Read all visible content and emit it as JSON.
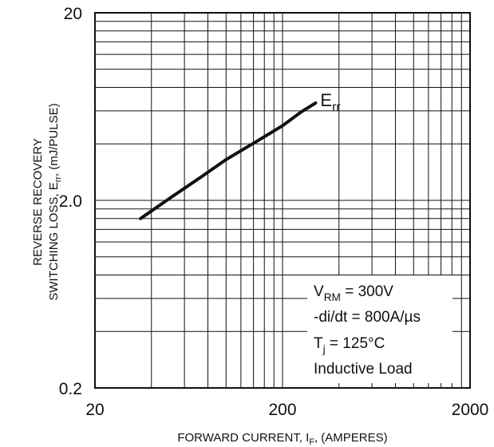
{
  "chart_data": {
    "type": "line",
    "x_scale": "log",
    "y_scale": "log",
    "xlim": [
      20,
      2000
    ],
    "ylim": [
      0.2,
      20
    ],
    "grid": true,
    "x_ticks": [
      "20",
      "200",
      "2000"
    ],
    "y_ticks": [
      "20",
      "2.0",
      "0.2"
    ],
    "xlabel": {
      "main": "FORWARD CURRENT, I",
      "sub": "F",
      "tail": ", (AMPERES)"
    },
    "ylabel": {
      "line1": "REVERSE RECOVERY",
      "line2_main": "SWITCHING LOSS, E",
      "line2_sub": "rr",
      "line2_tail": ", (mJ/PULSE)"
    },
    "series": [
      {
        "name": {
          "main": "E",
          "sub": "rr"
        },
        "x": [
          35,
          50,
          75,
          100,
          150,
          200,
          250,
          300
        ],
        "y": [
          1.6,
          2.05,
          2.7,
          3.3,
          4.2,
          5.0,
          5.9,
          6.6
        ]
      }
    ],
    "annotations": {
      "line1_main": "V",
      "line1_sub": "RM",
      "line1_tail": " = 300V",
      "line2": "-di/dt = 800A/µs",
      "line3_main": "T",
      "line3_sub": "j",
      "line3_tail": " = 125°C",
      "line4": "Inductive Load"
    }
  }
}
